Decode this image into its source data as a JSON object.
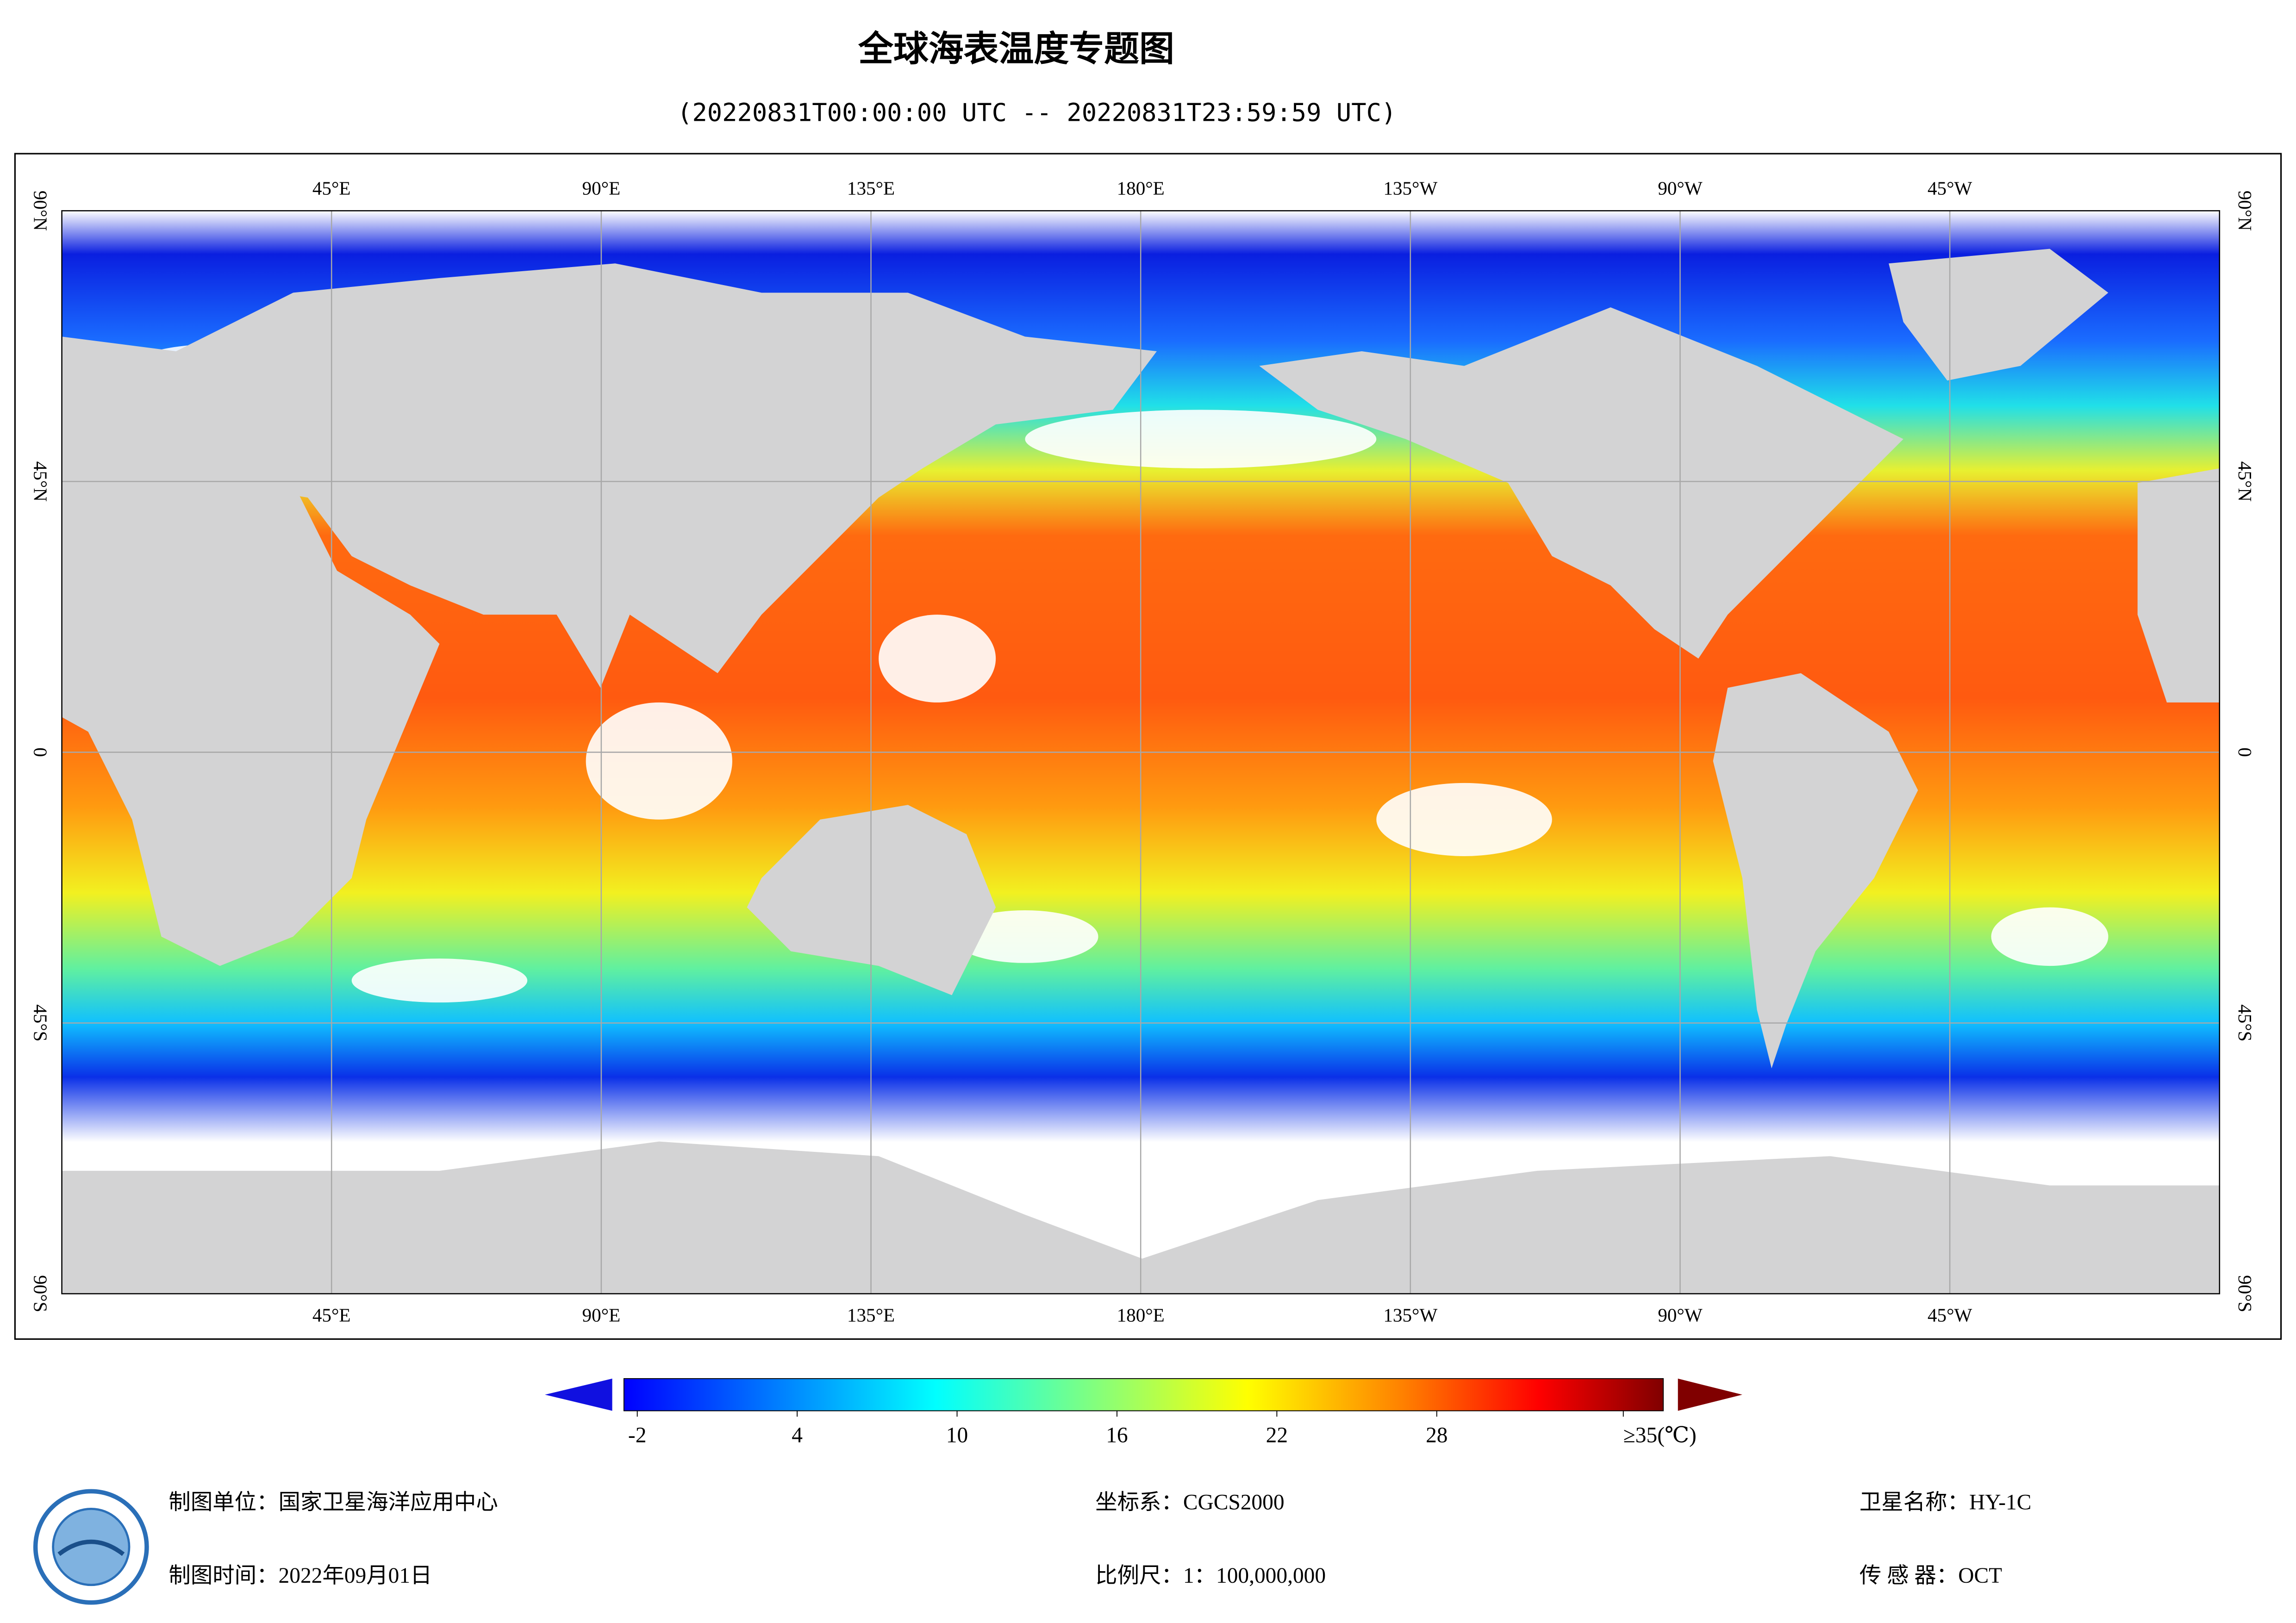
{
  "title": "全球海表温度专题图",
  "subtitle": "(20220831T00:00:00 UTC -- 20220831T23:59:59 UTC)",
  "map": {
    "lon_labels": [
      "45°E",
      "90°E",
      "135°E",
      "180°E",
      "135°W",
      "90°W",
      "45°W"
    ],
    "lat_labels": [
      "90°N",
      "45°N",
      "0",
      "45°S",
      "90°S"
    ]
  },
  "colorbar": {
    "lim": [
      -2.5,
      36.5
    ],
    "ticks": [
      -2,
      4,
      10,
      16,
      22,
      28,
      {
        "value": 35,
        "label": "≥35(℃)"
      }
    ]
  },
  "footer": {
    "unit": "制图单位：国家卫星海洋应用中心",
    "time": "制图时间：2022年09月01日",
    "crs": "坐标系：CGCS2000",
    "scale": "比例尺：1：100,000,000",
    "satellite": "卫星名称：HY-1C",
    "sensor": "传 感 器：OCT"
  }
}
